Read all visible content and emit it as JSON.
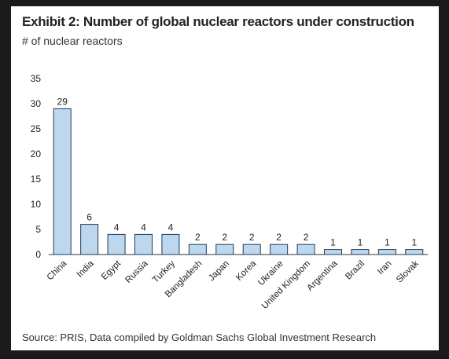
{
  "header": {
    "title": "Exhibit 2: Number of global nuclear reactors under construction",
    "subtitle": "# of nuclear reactors"
  },
  "footer": {
    "source": "Source: PRIS, Data compiled by Goldman Sachs Global Investment Research"
  },
  "colors": {
    "bar_fill": "#bdd7ee",
    "bar_stroke": "#1f3b57"
  },
  "chart_data": {
    "type": "bar",
    "categories": [
      "China",
      "India",
      "Egypt",
      "Russia",
      "Turkey",
      "Bangladesh",
      "Japan",
      "Korea",
      "Ukraine",
      "United Kingdom",
      "Argentina",
      "Brazil",
      "Iran",
      "Slovak"
    ],
    "values": [
      29,
      6,
      4,
      4,
      4,
      2,
      2,
      2,
      2,
      2,
      1,
      1,
      1,
      1
    ],
    "ylim": [
      0,
      35
    ],
    "yticks": [
      0,
      5,
      10,
      15,
      20,
      25,
      30,
      35
    ],
    "grid": false,
    "data_labels": true
  }
}
